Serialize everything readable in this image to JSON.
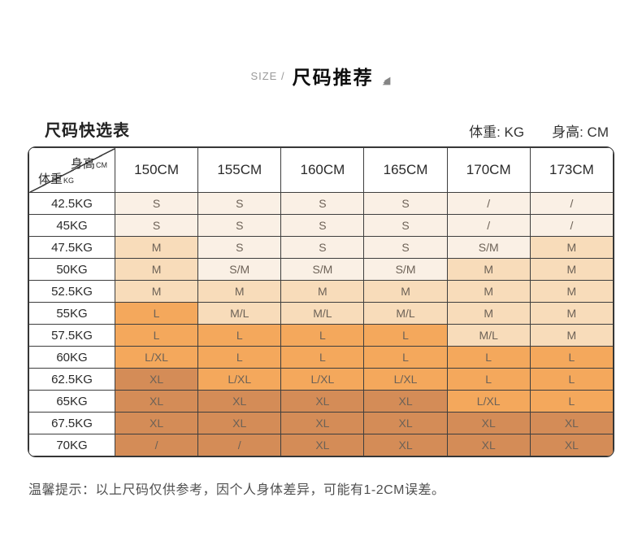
{
  "header": {
    "eyebrow": "SIZE /",
    "title": "尺码推荐"
  },
  "section": {
    "table_title": "尺码快选表",
    "weight_unit_label": "体重: KG",
    "height_unit_label": "身高: CM"
  },
  "table": {
    "corner": {
      "height_label": "身高",
      "height_unit": "CM",
      "weight_label": "体重",
      "weight_unit": "KG"
    },
    "columns": [
      "150CM",
      "155CM",
      "160CM",
      "165CM",
      "170CM",
      "173CM"
    ],
    "rows": [
      {
        "weight": "42.5KG",
        "values": [
          "S",
          "S",
          "S",
          "S",
          "/",
          "/"
        ],
        "tiers": [
          "s",
          "s",
          "s",
          "s",
          "s",
          "s"
        ]
      },
      {
        "weight": "45KG",
        "values": [
          "S",
          "S",
          "S",
          "S",
          "/",
          "/"
        ],
        "tiers": [
          "s",
          "s",
          "s",
          "s",
          "s",
          "s"
        ]
      },
      {
        "weight": "47.5KG",
        "values": [
          "M",
          "S",
          "S",
          "S",
          "S/M",
          "M"
        ],
        "tiers": [
          "m",
          "s",
          "s",
          "s",
          "s",
          "m"
        ]
      },
      {
        "weight": "50KG",
        "values": [
          "M",
          "S/M",
          "S/M",
          "S/M",
          "M",
          "M"
        ],
        "tiers": [
          "m",
          "s",
          "s",
          "s",
          "m",
          "m"
        ]
      },
      {
        "weight": "52.5KG",
        "values": [
          "M",
          "M",
          "M",
          "M",
          "M",
          "M"
        ],
        "tiers": [
          "m",
          "m",
          "m",
          "m",
          "m",
          "m"
        ]
      },
      {
        "weight": "55KG",
        "values": [
          "L",
          "M/L",
          "M/L",
          "M/L",
          "M",
          "M"
        ],
        "tiers": [
          "l",
          "m",
          "m",
          "m",
          "m",
          "m"
        ]
      },
      {
        "weight": "57.5KG",
        "values": [
          "L",
          "L",
          "L",
          "L",
          "M/L",
          "M"
        ],
        "tiers": [
          "l",
          "l",
          "l",
          "l",
          "m",
          "m"
        ]
      },
      {
        "weight": "60KG",
        "values": [
          "L/XL",
          "L",
          "L",
          "L",
          "L",
          "L"
        ],
        "tiers": [
          "l",
          "l",
          "l",
          "l",
          "l",
          "l"
        ]
      },
      {
        "weight": "62.5KG",
        "values": [
          "XL",
          "L/XL",
          "L/XL",
          "L/XL",
          "L",
          "L"
        ],
        "tiers": [
          "xl",
          "l",
          "l",
          "l",
          "l",
          "l"
        ]
      },
      {
        "weight": "65KG",
        "values": [
          "XL",
          "XL",
          "XL",
          "XL",
          "L/XL",
          "L"
        ],
        "tiers": [
          "xl",
          "xl",
          "xl",
          "xl",
          "l",
          "l"
        ]
      },
      {
        "weight": "67.5KG",
        "values": [
          "XL",
          "XL",
          "XL",
          "XL",
          "XL",
          "XL"
        ],
        "tiers": [
          "xl",
          "xl",
          "xl",
          "xl",
          "xl",
          "xl"
        ]
      },
      {
        "weight": "70KG",
        "values": [
          "/",
          "/",
          "XL",
          "XL",
          "XL",
          "XL"
        ],
        "tiers": [
          "xl",
          "xl",
          "xl",
          "xl",
          "xl",
          "xl"
        ]
      }
    ]
  },
  "note": "温馨提示：以上尺码仅供参考，因个人身体差异，可能有1-2CM误差。",
  "colors": {
    "tier_s": "#faf0e5",
    "tier_m": "#f8dcba",
    "tier_l": "#f4a85c",
    "tier_xl": "#d48c57",
    "border": "#3e3e3e"
  }
}
